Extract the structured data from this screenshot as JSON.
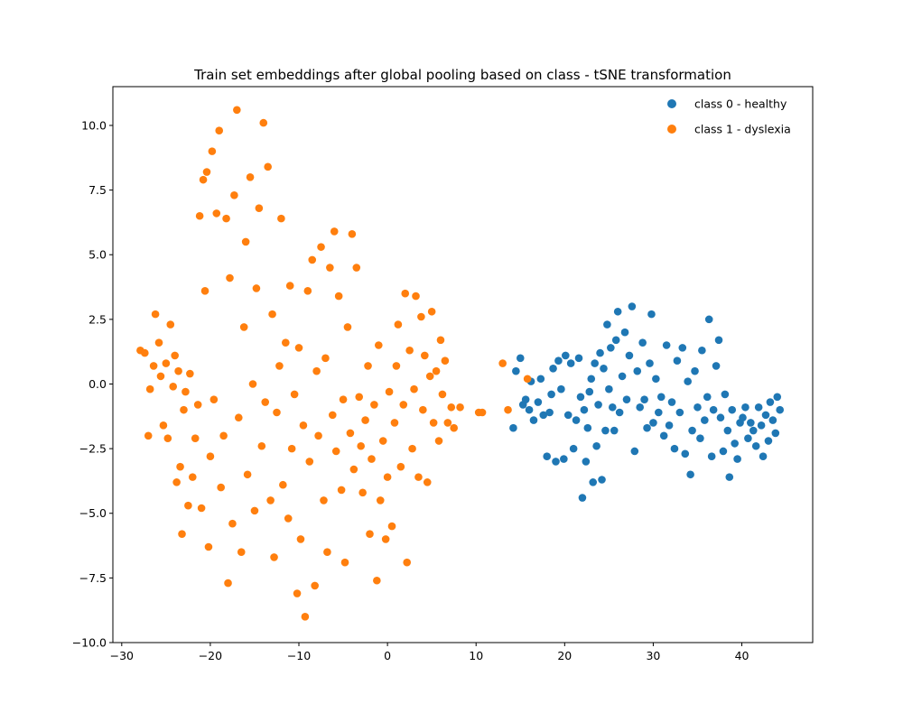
{
  "chart_data": {
    "type": "scatter",
    "title": "Train set embeddings after global pooling based on class - tSNE transformation",
    "xlabel": "",
    "ylabel": "",
    "xlim": [
      -31,
      48
    ],
    "ylim": [
      -10,
      11.5
    ],
    "xticks": [
      -30,
      -20,
      -10,
      0,
      10,
      20,
      30,
      40
    ],
    "yticks": [
      -10.0,
      -7.5,
      -5.0,
      -2.5,
      0.0,
      2.5,
      5.0,
      7.5,
      10.0
    ],
    "xtick_labels": [
      "−30",
      "−20",
      "−10",
      "0",
      "10",
      "20",
      "30",
      "40"
    ],
    "ytick_labels": [
      "−10.0",
      "−7.5",
      "−5.0",
      "−2.5",
      "0.0",
      "2.5",
      "5.0",
      "7.5",
      "10.0"
    ],
    "grid": false,
    "legend_position": "top-right",
    "series": [
      {
        "name": "class 0 - healthy",
        "color": "#1f77b4",
        "points": [
          [
            14.2,
            -1.7
          ],
          [
            14.5,
            0.5
          ],
          [
            15.0,
            1.0
          ],
          [
            15.3,
            -0.8
          ],
          [
            15.6,
            -0.6
          ],
          [
            16.0,
            -1.0
          ],
          [
            16.2,
            0.1
          ],
          [
            16.5,
            -1.4
          ],
          [
            17.0,
            -0.7
          ],
          [
            17.3,
            0.2
          ],
          [
            17.6,
            -1.2
          ],
          [
            18.0,
            -2.8
          ],
          [
            18.3,
            -1.1
          ],
          [
            18.5,
            -0.4
          ],
          [
            18.7,
            0.6
          ],
          [
            19.0,
            -3.0
          ],
          [
            19.3,
            0.9
          ],
          [
            19.6,
            -0.2
          ],
          [
            19.9,
            -2.9
          ],
          [
            20.1,
            1.1
          ],
          [
            20.4,
            -1.2
          ],
          [
            20.7,
            0.8
          ],
          [
            21.0,
            -2.5
          ],
          [
            21.3,
            -1.4
          ],
          [
            21.6,
            1.0
          ],
          [
            21.8,
            -0.5
          ],
          [
            22.0,
            -4.4
          ],
          [
            22.2,
            -1.0
          ],
          [
            22.4,
            -3.0
          ],
          [
            22.6,
            -1.7
          ],
          [
            22.8,
            -0.3
          ],
          [
            23.0,
            0.2
          ],
          [
            23.2,
            -3.8
          ],
          [
            23.4,
            0.8
          ],
          [
            23.6,
            -2.4
          ],
          [
            23.8,
            -0.8
          ],
          [
            24.0,
            1.2
          ],
          [
            24.2,
            -3.7
          ],
          [
            24.4,
            0.6
          ],
          [
            24.6,
            -1.8
          ],
          [
            24.8,
            2.3
          ],
          [
            25.0,
            -0.2
          ],
          [
            25.2,
            1.4
          ],
          [
            25.4,
            -0.9
          ],
          [
            25.6,
            -1.8
          ],
          [
            25.8,
            1.7
          ],
          [
            26.0,
            2.8
          ],
          [
            26.2,
            -1.1
          ],
          [
            26.5,
            0.3
          ],
          [
            26.8,
            2.0
          ],
          [
            27.0,
            -0.6
          ],
          [
            27.3,
            1.1
          ],
          [
            27.6,
            3.0
          ],
          [
            27.9,
            -2.6
          ],
          [
            28.2,
            0.5
          ],
          [
            28.5,
            -0.9
          ],
          [
            28.8,
            1.6
          ],
          [
            29.0,
            -0.6
          ],
          [
            29.3,
            -1.7
          ],
          [
            29.6,
            0.8
          ],
          [
            29.8,
            2.7
          ],
          [
            30.0,
            -1.5
          ],
          [
            30.3,
            0.2
          ],
          [
            30.6,
            -1.1
          ],
          [
            30.9,
            -0.5
          ],
          [
            31.2,
            -2.0
          ],
          [
            31.5,
            1.5
          ],
          [
            31.8,
            -1.6
          ],
          [
            32.1,
            -0.7
          ],
          [
            32.4,
            -2.5
          ],
          [
            32.7,
            0.9
          ],
          [
            33.0,
            -1.1
          ],
          [
            33.3,
            1.4
          ],
          [
            33.6,
            -2.7
          ],
          [
            33.9,
            0.1
          ],
          [
            34.2,
            -3.5
          ],
          [
            34.4,
            -1.8
          ],
          [
            34.7,
            0.5
          ],
          [
            35.0,
            -0.9
          ],
          [
            35.3,
            -2.1
          ],
          [
            35.5,
            1.3
          ],
          [
            35.8,
            -1.4
          ],
          [
            36.1,
            -0.5
          ],
          [
            36.3,
            2.5
          ],
          [
            36.6,
            -2.8
          ],
          [
            36.8,
            -1.0
          ],
          [
            37.1,
            0.7
          ],
          [
            37.4,
            1.7
          ],
          [
            37.6,
            -1.3
          ],
          [
            37.9,
            -2.6
          ],
          [
            38.1,
            -0.4
          ],
          [
            38.4,
            -1.8
          ],
          [
            38.6,
            -3.6
          ],
          [
            38.9,
            -1.0
          ],
          [
            39.2,
            -2.3
          ],
          [
            39.5,
            -2.9
          ],
          [
            39.8,
            -1.5
          ],
          [
            40.1,
            -1.3
          ],
          [
            40.4,
            -0.9
          ],
          [
            40.7,
            -2.1
          ],
          [
            41.0,
            -1.5
          ],
          [
            41.3,
            -1.8
          ],
          [
            41.6,
            -2.4
          ],
          [
            41.9,
            -0.9
          ],
          [
            42.2,
            -1.6
          ],
          [
            42.4,
            -2.8
          ],
          [
            42.7,
            -1.2
          ],
          [
            43.0,
            -2.2
          ],
          [
            43.2,
            -0.7
          ],
          [
            43.5,
            -1.4
          ],
          [
            43.8,
            -1.9
          ],
          [
            44.0,
            -0.5
          ],
          [
            44.3,
            -1.0
          ]
        ]
      },
      {
        "name": "class 1 - dyslexia",
        "color": "#ff7f0e",
        "points": [
          [
            -27.9,
            1.3
          ],
          [
            -27.4,
            1.2
          ],
          [
            -27.0,
            -2.0
          ],
          [
            -26.8,
            -0.2
          ],
          [
            -26.4,
            0.7
          ],
          [
            -26.2,
            2.7
          ],
          [
            -25.8,
            1.6
          ],
          [
            -25.6,
            0.3
          ],
          [
            -25.3,
            -1.6
          ],
          [
            -25.0,
            0.8
          ],
          [
            -24.8,
            -2.1
          ],
          [
            -24.5,
            2.3
          ],
          [
            -24.2,
            -0.1
          ],
          [
            -24.0,
            1.1
          ],
          [
            -23.8,
            -3.8
          ],
          [
            -23.6,
            0.5
          ],
          [
            -23.4,
            -3.2
          ],
          [
            -23.2,
            -5.8
          ],
          [
            -23.0,
            -1.0
          ],
          [
            -22.8,
            -0.3
          ],
          [
            -22.5,
            -4.7
          ],
          [
            -22.3,
            0.4
          ],
          [
            -22.0,
            -3.6
          ],
          [
            -21.7,
            -2.1
          ],
          [
            -21.4,
            -0.8
          ],
          [
            -21.2,
            6.5
          ],
          [
            -21.0,
            -4.8
          ],
          [
            -20.8,
            7.9
          ],
          [
            -20.6,
            3.6
          ],
          [
            -20.4,
            8.2
          ],
          [
            -20.2,
            -6.3
          ],
          [
            -20.0,
            -2.8
          ],
          [
            -19.8,
            9.0
          ],
          [
            -19.6,
            -0.6
          ],
          [
            -19.3,
            6.6
          ],
          [
            -19.0,
            9.8
          ],
          [
            -18.8,
            -4.0
          ],
          [
            -18.5,
            -2.0
          ],
          [
            -18.2,
            6.4
          ],
          [
            -18.0,
            -7.7
          ],
          [
            -17.8,
            4.1
          ],
          [
            -17.5,
            -5.4
          ],
          [
            -17.3,
            7.3
          ],
          [
            -17.0,
            10.6
          ],
          [
            -16.8,
            -1.3
          ],
          [
            -16.5,
            -6.5
          ],
          [
            -16.2,
            2.2
          ],
          [
            -16.0,
            5.5
          ],
          [
            -15.8,
            -3.5
          ],
          [
            -15.5,
            8.0
          ],
          [
            -15.2,
            0.0
          ],
          [
            -15.0,
            -4.9
          ],
          [
            -14.8,
            3.7
          ],
          [
            -14.5,
            6.8
          ],
          [
            -14.2,
            -2.4
          ],
          [
            -14.0,
            10.1
          ],
          [
            -13.8,
            -0.7
          ],
          [
            -13.5,
            8.4
          ],
          [
            -13.2,
            -4.5
          ],
          [
            -13.0,
            2.7
          ],
          [
            -12.8,
            -6.7
          ],
          [
            -12.5,
            -1.1
          ],
          [
            -12.2,
            0.7
          ],
          [
            -12.0,
            6.4
          ],
          [
            -11.8,
            -3.9
          ],
          [
            -11.5,
            1.6
          ],
          [
            -11.2,
            -5.2
          ],
          [
            -11.0,
            3.8
          ],
          [
            -10.8,
            -2.5
          ],
          [
            -10.5,
            -0.4
          ],
          [
            -10.2,
            -8.1
          ],
          [
            -10.0,
            1.4
          ],
          [
            -9.8,
            -6.0
          ],
          [
            -9.5,
            -1.6
          ],
          [
            -9.3,
            -9.0
          ],
          [
            -9.0,
            3.6
          ],
          [
            -8.8,
            -3.0
          ],
          [
            -8.5,
            4.8
          ],
          [
            -8.2,
            -7.8
          ],
          [
            -8.0,
            0.5
          ],
          [
            -7.8,
            -2.0
          ],
          [
            -7.5,
            5.3
          ],
          [
            -7.2,
            -4.5
          ],
          [
            -7.0,
            1.0
          ],
          [
            -6.8,
            -6.5
          ],
          [
            -6.5,
            4.5
          ],
          [
            -6.2,
            -1.2
          ],
          [
            -6.0,
            5.9
          ],
          [
            -5.8,
            -2.6
          ],
          [
            -5.5,
            3.4
          ],
          [
            -5.2,
            -4.1
          ],
          [
            -5.0,
            -0.6
          ],
          [
            -4.8,
            -6.9
          ],
          [
            -4.5,
            2.2
          ],
          [
            -4.2,
            -1.9
          ],
          [
            -4.0,
            5.8
          ],
          [
            -3.8,
            -3.3
          ],
          [
            -3.5,
            4.5
          ],
          [
            -3.2,
            -0.5
          ],
          [
            -3.0,
            -2.4
          ],
          [
            -2.8,
            -4.2
          ],
          [
            -2.5,
            -1.4
          ],
          [
            -2.2,
            0.7
          ],
          [
            -2.0,
            -5.8
          ],
          [
            -1.8,
            -2.9
          ],
          [
            -1.5,
            -0.8
          ],
          [
            -1.2,
            -7.6
          ],
          [
            -1.0,
            1.5
          ],
          [
            -0.8,
            -4.5
          ],
          [
            -0.5,
            -2.2
          ],
          [
            -0.2,
            -6.0
          ],
          [
            0.0,
            -3.6
          ],
          [
            0.2,
            -0.3
          ],
          [
            0.5,
            -5.5
          ],
          [
            0.8,
            -1.5
          ],
          [
            1.0,
            0.7
          ],
          [
            1.2,
            2.3
          ],
          [
            1.5,
            -3.2
          ],
          [
            1.8,
            -0.8
          ],
          [
            2.0,
            3.5
          ],
          [
            2.2,
            -6.9
          ],
          [
            2.5,
            1.3
          ],
          [
            2.8,
            -2.5
          ],
          [
            3.0,
            -0.2
          ],
          [
            3.2,
            3.4
          ],
          [
            3.5,
            -3.6
          ],
          [
            3.8,
            2.6
          ],
          [
            4.0,
            -1.0
          ],
          [
            4.2,
            1.1
          ],
          [
            4.5,
            -3.8
          ],
          [
            4.8,
            0.3
          ],
          [
            5.0,
            2.8
          ],
          [
            5.2,
            -1.5
          ],
          [
            5.5,
            0.5
          ],
          [
            5.8,
            -2.2
          ],
          [
            6.0,
            1.7
          ],
          [
            6.2,
            -0.4
          ],
          [
            6.5,
            0.9
          ],
          [
            6.8,
            -1.5
          ],
          [
            7.2,
            -0.9
          ],
          [
            7.5,
            -1.7
          ],
          [
            8.2,
            -0.9
          ],
          [
            10.3,
            -1.1
          ],
          [
            10.7,
            -1.1
          ],
          [
            13.0,
            0.8
          ],
          [
            13.6,
            -1.0
          ],
          [
            15.8,
            0.2
          ]
        ]
      }
    ]
  }
}
